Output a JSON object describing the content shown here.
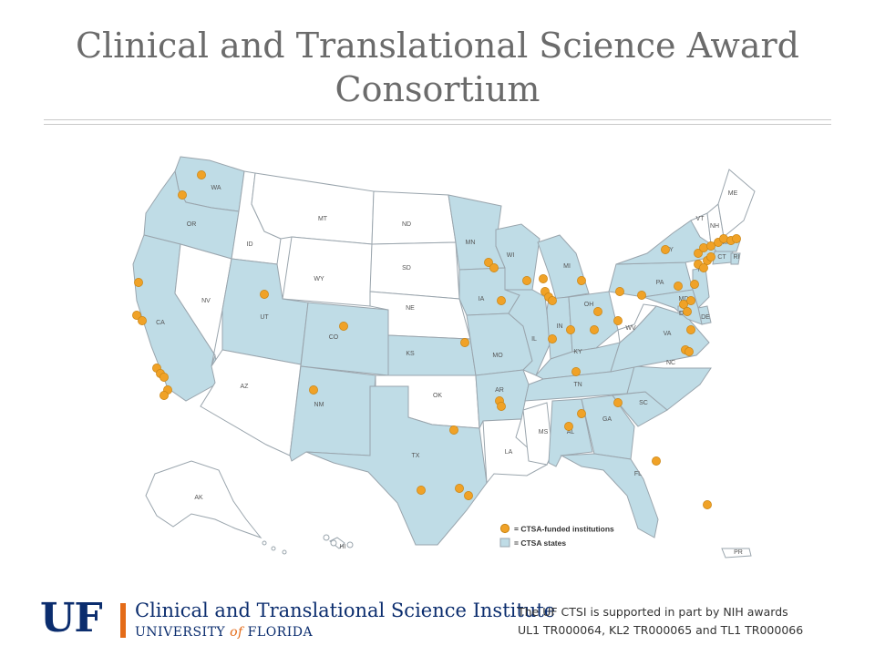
{
  "slide": {
    "title_line1": "Clinical and Translational Science Award",
    "title_line2": "Consortium"
  },
  "map": {
    "colors": {
      "ctsa_state": "#bfdce6",
      "other_state": "#ffffff",
      "border": "#9aa5ad",
      "institution_dot": "#f0a227",
      "label": "#555555"
    },
    "state_labels": [
      "WA",
      "OR",
      "CA",
      "NV",
      "ID",
      "MT",
      "WY",
      "UT",
      "AZ",
      "CO",
      "NM",
      "ND",
      "SD",
      "NE",
      "KS",
      "OK",
      "TX",
      "MN",
      "IA",
      "MO",
      "AR",
      "LA",
      "WI",
      "IL",
      "MI",
      "IN",
      "OH",
      "KY",
      "TN",
      "MS",
      "AL",
      "GA",
      "FL",
      "SC",
      "NC",
      "VA",
      "WV",
      "PA",
      "NY",
      "VT",
      "NH",
      "ME",
      "MA",
      "CT",
      "RI",
      "NJ",
      "DE",
      "MD",
      "DC",
      "AK",
      "HI",
      "PR"
    ],
    "legend": {
      "funded": "= CTSA-funded institutions",
      "states": "= CTSA states"
    }
  },
  "footer": {
    "logo_mark": "UF",
    "institute_name": "Clinical and Translational Science Institute",
    "university_prefix": "UNIVERSITY ",
    "university_of": "of",
    "university_suffix": " FLORIDA",
    "grant_line1": "The UF CTSI is supported in part by NIH awards",
    "grant_line2": "UL1 TR000064, KL2 TR000065 and TL1 TR000066"
  }
}
